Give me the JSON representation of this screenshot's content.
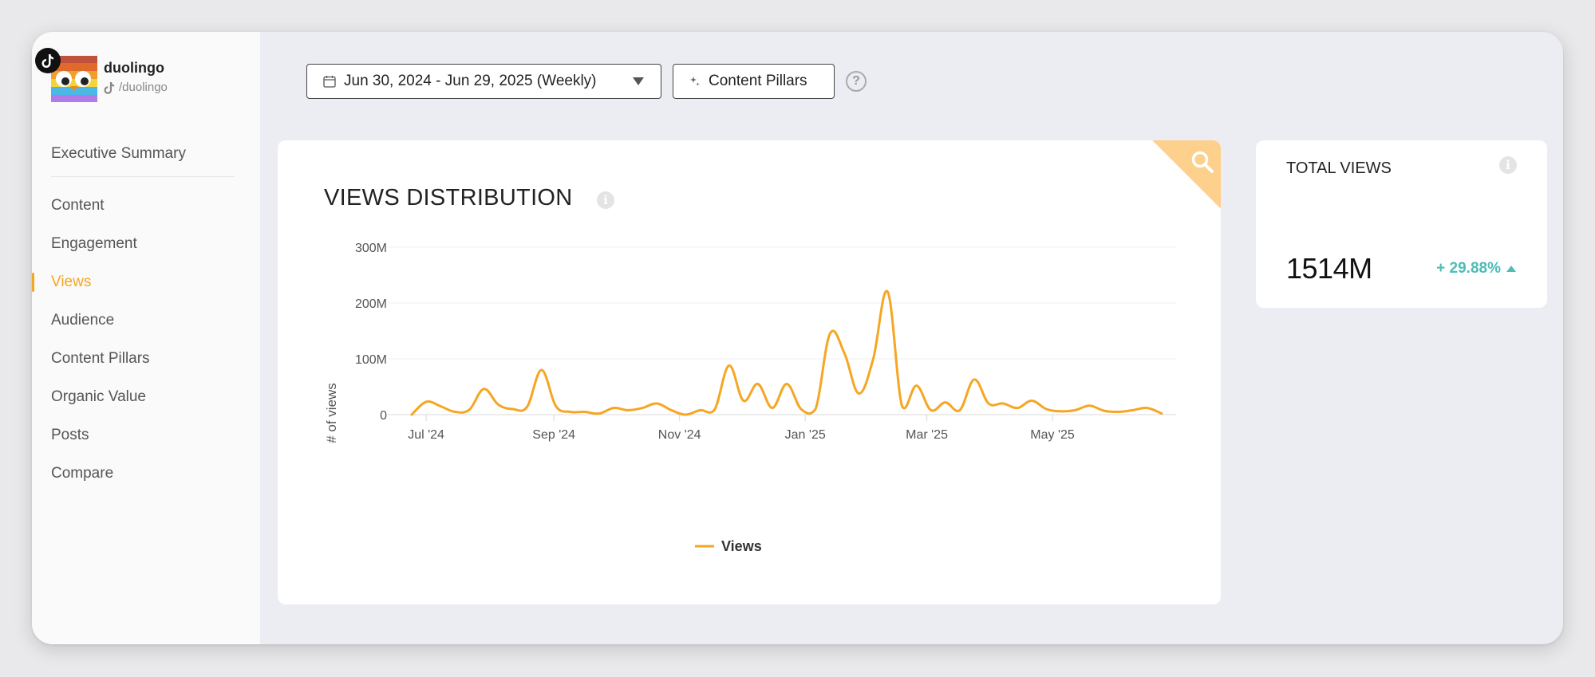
{
  "profile": {
    "name": "duolingo",
    "handle": "/duolingo"
  },
  "nav": {
    "items": [
      {
        "label": "Executive Summary",
        "active": false
      },
      {
        "label": "Content",
        "active": false
      },
      {
        "label": "Engagement",
        "active": false
      },
      {
        "label": "Views",
        "active": true
      },
      {
        "label": "Audience",
        "active": false
      },
      {
        "label": "Content Pillars",
        "active": false
      },
      {
        "label": "Organic Value",
        "active": false
      },
      {
        "label": "Posts",
        "active": false
      },
      {
        "label": "Compare",
        "active": false
      }
    ]
  },
  "toolbar": {
    "date_range": "Jun 30, 2024 - Jun 29, 2025 (Weekly)",
    "content_pillars": "Content Pillars",
    "help": "?"
  },
  "views_card": {
    "title": "VIEWS DISTRIBUTION",
    "info": "i"
  },
  "total_views": {
    "label": "TOTAL VIEWS",
    "info": "i",
    "value": "1514M",
    "change": "+ 29.88%"
  },
  "colors": {
    "accent": "#f5a623",
    "positive": "#4dbdb5",
    "corner": "#fdd08c"
  },
  "chart_data": {
    "type": "line",
    "title": "VIEWS DISTRIBUTION",
    "ylabel": "# of views",
    "xlabel": "",
    "y_ticks": [
      "0",
      "100M",
      "200M",
      "300M"
    ],
    "y_tick_values": [
      0,
      100,
      200,
      300
    ],
    "ylim": [
      0,
      300
    ],
    "x_ticks": [
      "Jul '24",
      "Sep '24",
      "Nov '24",
      "Jan '25",
      "Mar '25",
      "May '25"
    ],
    "x_tick_dates": [
      "2024-07-01",
      "2024-09-01",
      "2024-11-01",
      "2025-01-01",
      "2025-03-01",
      "2025-05-01"
    ],
    "x_range": [
      "2024-06-24",
      "2025-06-30"
    ],
    "grid": true,
    "legend": "bottom-center",
    "series": [
      {
        "name": "Views",
        "color": "#f5a623",
        "points": [
          [
            "2024-06-24",
            0
          ],
          [
            "2024-07-01",
            23
          ],
          [
            "2024-07-08",
            15
          ],
          [
            "2024-07-15",
            5
          ],
          [
            "2024-07-22",
            9
          ],
          [
            "2024-07-29",
            46
          ],
          [
            "2024-08-05",
            18
          ],
          [
            "2024-08-12",
            10
          ],
          [
            "2024-08-19",
            14
          ],
          [
            "2024-08-26",
            80
          ],
          [
            "2024-09-02",
            15
          ],
          [
            "2024-09-09",
            5
          ],
          [
            "2024-09-16",
            5
          ],
          [
            "2024-09-23",
            2
          ],
          [
            "2024-09-30",
            12
          ],
          [
            "2024-10-07",
            8
          ],
          [
            "2024-10-14",
            12
          ],
          [
            "2024-10-21",
            20
          ],
          [
            "2024-10-28",
            8
          ],
          [
            "2024-11-04",
            0
          ],
          [
            "2024-11-11",
            8
          ],
          [
            "2024-11-18",
            9
          ],
          [
            "2024-11-25",
            88
          ],
          [
            "2024-12-02",
            25
          ],
          [
            "2024-12-09",
            55
          ],
          [
            "2024-12-16",
            12
          ],
          [
            "2024-12-23",
            55
          ],
          [
            "2024-12-30",
            10
          ],
          [
            "2025-01-06",
            10
          ],
          [
            "2025-01-13",
            145
          ],
          [
            "2025-01-20",
            110
          ],
          [
            "2025-01-27",
            38
          ],
          [
            "2025-02-03",
            100
          ],
          [
            "2025-02-10",
            220
          ],
          [
            "2025-02-17",
            15
          ],
          [
            "2025-02-24",
            52
          ],
          [
            "2025-03-03",
            8
          ],
          [
            "2025-03-10",
            22
          ],
          [
            "2025-03-17",
            8
          ],
          [
            "2025-03-24",
            63
          ],
          [
            "2025-03-31",
            20
          ],
          [
            "2025-04-07",
            20
          ],
          [
            "2025-04-14",
            12
          ],
          [
            "2025-04-21",
            25
          ],
          [
            "2025-04-28",
            10
          ],
          [
            "2025-05-05",
            6
          ],
          [
            "2025-05-12",
            8
          ],
          [
            "2025-05-19",
            16
          ],
          [
            "2025-05-26",
            7
          ],
          [
            "2025-06-02",
            5
          ],
          [
            "2025-06-09",
            8
          ],
          [
            "2025-06-16",
            12
          ],
          [
            "2025-06-23",
            2
          ]
        ]
      }
    ]
  }
}
